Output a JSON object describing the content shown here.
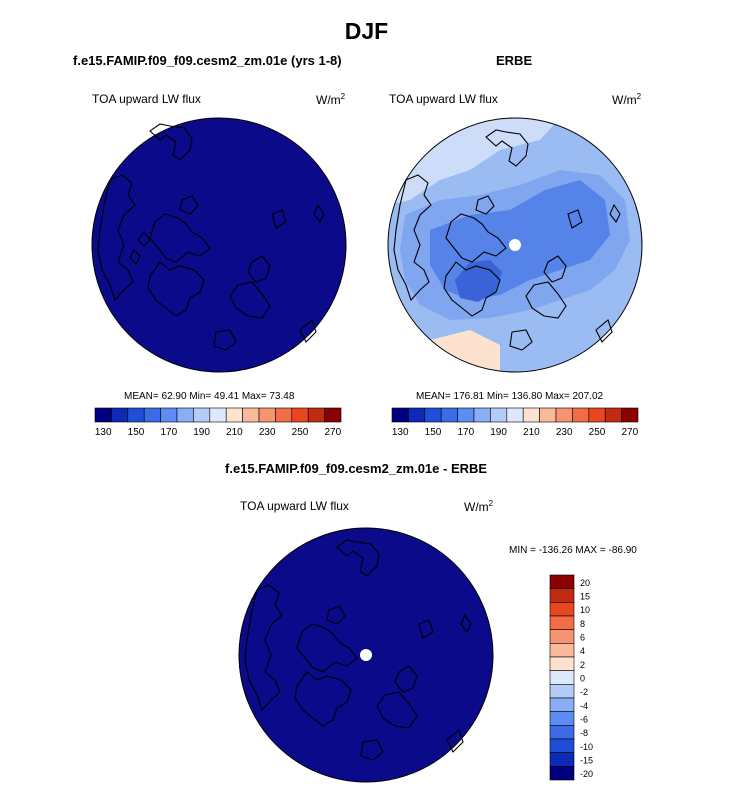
{
  "main_title": "DJF",
  "panels": [
    {
      "title": "f.e15.FAMIP.f09_f09.cesm2_zm.01e (yrs 1-8)",
      "variable": "TOA upward LW flux",
      "units_base": "W/m",
      "units_exp": "2",
      "stats": "MEAN= 62.90  Min= 49.41  Max= 73.48"
    },
    {
      "title": "ERBE",
      "variable": "TOA upward LW flux",
      "units_base": "W/m",
      "units_exp": "2",
      "stats": "MEAN= 176.81  Min= 136.80  Max= 207.02"
    },
    {
      "title": "f.e15.FAMIP.f09_f09.cesm2_zm.01e - ERBE",
      "variable": "TOA upward LW flux",
      "units_base": "W/m",
      "units_exp": "2",
      "stats": "MIN = -136.26 MAX = -86.90"
    }
  ],
  "colors": {
    "abs_scale": [
      "#00007f",
      "#0c2ab5",
      "#1f4fd6",
      "#3d6be8",
      "#5d8cf2",
      "#8aaef5",
      "#b5ccf8",
      "#dde8fb",
      "#fde2cf",
      "#f9b99a",
      "#f59470",
      "#f26c45",
      "#e8461f",
      "#c22a12",
      "#8b0000"
    ],
    "diff_scale": [
      "#00007f",
      "#0c2ab5",
      "#1f4fd6",
      "#3d6be8",
      "#5d8cf2",
      "#8aaef5",
      "#b5ccf8",
      "#dde8fb",
      "#fde2cf",
      "#f9b99a",
      "#f59470",
      "#f26c45",
      "#e8461f",
      "#c22a12",
      "#8b0000"
    ],
    "model_field": "#0a0a8a",
    "erbe_bg": "#9bbcf3",
    "erbe_mid": "#7fa6ef",
    "erbe_dark": "#5683e8",
    "erbe_darker": "#3a63d8",
    "erbe_warm": "#fde2cf",
    "erbe_light": "#cddcf8"
  },
  "chart_data": [
    {
      "type": "heatmap",
      "title": "f.e15.FAMIP.f09_f09.cesm2_zm.01e (yrs 1-8)",
      "subtitle": "TOA upward LW flux",
      "units": "W/m2",
      "projection": "north polar stereographic",
      "stats": {
        "mean": 62.9,
        "min": 49.41,
        "max": 73.48
      },
      "colorbar_levels": [
        130,
        140,
        150,
        160,
        170,
        180,
        190,
        200,
        210,
        220,
        230,
        240,
        250,
        260,
        270
      ],
      "colorbar_tick_labels": [
        "130",
        "150",
        "170",
        "190",
        "210",
        "230",
        "250",
        "270"
      ]
    },
    {
      "type": "heatmap",
      "title": "ERBE",
      "subtitle": "TOA upward LW flux",
      "units": "W/m2",
      "projection": "north polar stereographic",
      "stats": {
        "mean": 176.81,
        "min": 136.8,
        "max": 207.02
      },
      "colorbar_levels": [
        130,
        140,
        150,
        160,
        170,
        180,
        190,
        200,
        210,
        220,
        230,
        240,
        250,
        260,
        270
      ],
      "colorbar_tick_labels": [
        "130",
        "150",
        "170",
        "190",
        "210",
        "230",
        "250",
        "270"
      ]
    },
    {
      "type": "heatmap",
      "title": "f.e15.FAMIP.f09_f09.cesm2_zm.01e - ERBE",
      "subtitle": "TOA upward LW flux",
      "units": "W/m2",
      "projection": "north polar stereographic",
      "stats": {
        "min": -136.26,
        "max": -86.9
      },
      "colorbar_levels": [
        -20,
        -15,
        -10,
        -8,
        -6,
        -4,
        -2,
        0,
        2,
        4,
        6,
        8,
        10,
        15,
        20
      ],
      "colorbar_tick_labels": [
        "20",
        "15",
        "10",
        "8",
        "6",
        "4",
        "2",
        "0",
        "-2",
        "-4",
        "-6",
        "-8",
        "-10",
        "-15",
        "-20"
      ]
    }
  ]
}
